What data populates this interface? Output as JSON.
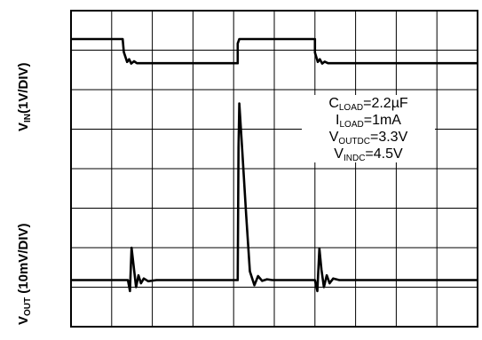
{
  "chart_data": {
    "type": "line",
    "title": "",
    "xlabel": "",
    "ylabels": [
      {
        "text": "V",
        "sub": "IN",
        "rest": "(1V/DIV)"
      },
      {
        "text": "V",
        "sub": "OUT",
        "rest": " (10mV/DIV)"
      }
    ],
    "grid": true,
    "x_divisions": 10,
    "y_divisions": 8,
    "xlim": [
      0,
      10
    ],
    "ylim": [
      0,
      8
    ],
    "annotations": [
      {
        "main": "C",
        "sub": "LOAD",
        "rest": "=2.2µF"
      },
      {
        "main": "I",
        "sub": "LOAD",
        "rest": "=1mA"
      },
      {
        "main": "V",
        "sub": "OUTDC",
        "rest": "=3.3V"
      },
      {
        "main": "V",
        "sub": "INDC",
        "rest": "=4.5V"
      }
    ],
    "series": [
      {
        "role": "input",
        "x": [
          0.0,
          1.27,
          1.3,
          1.38,
          1.43,
          1.48,
          1.55,
          1.62,
          1.75,
          4.1,
          4.1,
          4.14,
          6.0,
          6.0,
          6.07,
          6.12,
          6.18,
          6.24,
          6.32,
          10.0
        ],
        "y": [
          7.28,
          7.28,
          6.95,
          6.7,
          6.77,
          6.66,
          6.72,
          6.67,
          6.67,
          6.67,
          7.17,
          7.28,
          7.28,
          6.94,
          6.7,
          6.77,
          6.66,
          6.71,
          6.67,
          6.67
        ]
      },
      {
        "role": "output",
        "x": [
          0.0,
          1.4,
          1.45,
          1.49,
          1.55,
          1.6,
          1.66,
          1.72,
          1.79,
          1.9,
          2.1,
          4.1,
          4.12,
          4.14,
          4.21,
          4.31,
          4.4,
          4.51,
          4.6,
          4.7,
          4.82,
          4.95,
          6.0,
          6.06,
          6.11,
          6.16,
          6.22,
          6.29,
          6.36,
          6.45,
          6.6,
          10.0
        ],
        "y": [
          1.18,
          1.18,
          0.9,
          2.0,
          1.45,
          1.0,
          1.3,
          1.1,
          1.22,
          1.15,
          1.18,
          1.18,
          4.53,
          5.65,
          4.5,
          2.8,
          1.4,
          1.05,
          1.28,
          1.16,
          1.2,
          1.18,
          1.18,
          0.9,
          1.98,
          1.45,
          1.0,
          1.3,
          1.1,
          1.22,
          1.18,
          1.18
        ]
      }
    ]
  }
}
